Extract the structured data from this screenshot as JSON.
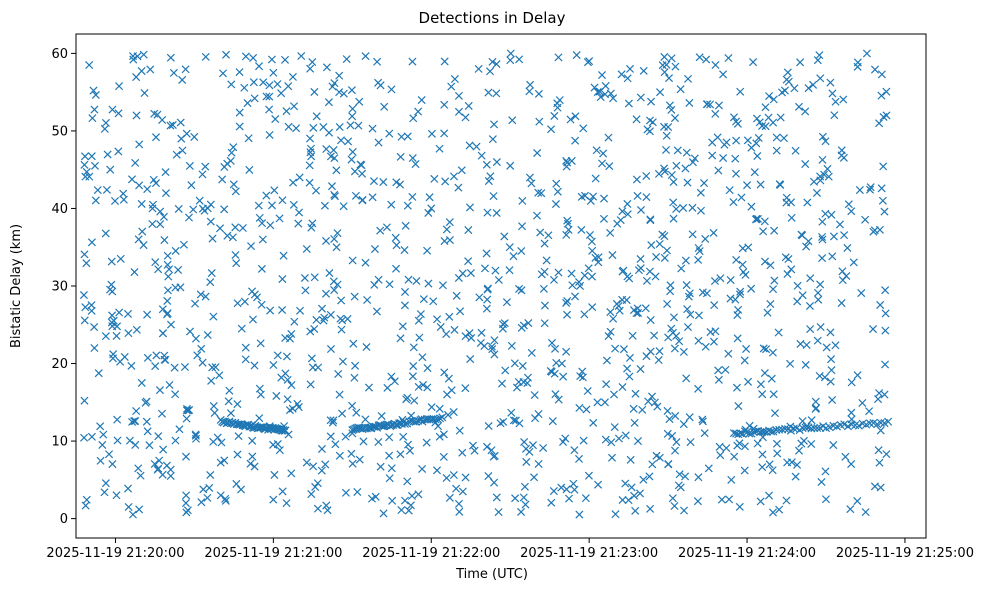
{
  "chart_data": {
    "type": "scatter",
    "title": "Detections in Delay",
    "xlabel": "Time (UTC)",
    "ylabel": "Bistatic Delay (km)",
    "x_ticks": [
      "2025-11-19 21:20:00",
      "2025-11-19 21:21:00",
      "2025-11-19 21:22:00",
      "2025-11-19 21:23:00",
      "2025-11-19 21:24:00",
      "2025-11-19 21:25:00"
    ],
    "y_ticks": [
      "0",
      "10",
      "20",
      "30",
      "40",
      "50",
      "60"
    ],
    "xlim": [
      "2025-11-19 21:19:45",
      "2025-11-19 21:25:08"
    ],
    "ylim": [
      -2.5,
      62.5
    ],
    "marker": "x",
    "grid": false,
    "colors": {
      "series": "#1f77b4",
      "axis": "#000000"
    },
    "series": [
      {
        "trend_tracks": [
          {
            "x": [
              "2025-11-19 21:20:40",
              "2025-11-19 21:20:50",
              "2025-11-19 21:20:58",
              "2025-11-19 21:21:05"
            ],
            "y": [
              12.6,
              12.0,
              11.6,
              11.4
            ]
          },
          {
            "x": [
              "2025-11-19 21:21:30",
              "2025-11-19 21:21:40",
              "2025-11-19 21:21:50",
              "2025-11-19 21:22:05"
            ],
            "y": [
              11.5,
              11.9,
              12.3,
              13.0
            ]
          },
          {
            "x": [
              "2025-11-19 21:23:55",
              "2025-11-19 21:24:10",
              "2025-11-19 21:24:30",
              "2025-11-19 21:24:55"
            ],
            "y": [
              11.0,
              11.3,
              11.8,
              12.5
            ]
          }
        ],
        "x": [
          "2025-11-19 21:19:50",
          "2025-11-19 21:19:52",
          "2025-11-19 21:19:55",
          "2025-11-19 21:19:58",
          "2025-11-19 21:20:02",
          "2025-11-19 21:20:05",
          "2025-11-19 21:20:08",
          "2025-11-19 21:20:10",
          "2025-11-19 21:20:14",
          "2025-11-19 21:20:18",
          "2025-11-19 21:20:21",
          "2025-11-19 21:20:25",
          "2025-11-19 21:20:28",
          "2025-11-19 21:20:32",
          "2025-11-19 21:20:36",
          "2025-11-19 21:20:40",
          "2025-11-19 21:20:44",
          "2025-11-19 21:20:48",
          "2025-11-19 21:20:52",
          "2025-11-19 21:20:56",
          "2025-11-19 21:21:00",
          "2025-11-19 21:21:05",
          "2025-11-19 21:21:10",
          "2025-11-19 21:21:15",
          "2025-11-19 21:21:20",
          "2025-11-19 21:21:25",
          "2025-11-19 21:21:30",
          "2025-11-19 21:21:35",
          "2025-11-19 21:21:40",
          "2025-11-19 21:21:45",
          "2025-11-19 21:21:50",
          "2025-11-19 21:21:55",
          "2025-11-19 21:22:00",
          "2025-11-19 21:22:06",
          "2025-11-19 21:22:12",
          "2025-11-19 21:22:18",
          "2025-11-19 21:22:24",
          "2025-11-19 21:22:30",
          "2025-11-19 21:22:36",
          "2025-11-19 21:22:42",
          "2025-11-19 21:22:48",
          "2025-11-19 21:22:54",
          "2025-11-19 21:23:00",
          "2025-11-19 21:23:06",
          "2025-11-19 21:23:12",
          "2025-11-19 21:23:18",
          "2025-11-19 21:23:24",
          "2025-11-19 21:23:30",
          "2025-11-19 21:23:36",
          "2025-11-19 21:23:42",
          "2025-11-19 21:23:48",
          "2025-11-19 21:23:54",
          "2025-11-19 21:24:00",
          "2025-11-19 21:24:06",
          "2025-11-19 21:24:12",
          "2025-11-19 21:24:18",
          "2025-11-19 21:24:24",
          "2025-11-19 21:24:30",
          "2025-11-19 21:24:36",
          "2025-11-19 21:24:42",
          "2025-11-19 21:24:48",
          "2025-11-19 21:24:53"
        ],
        "y": [
          58.5,
          22.0,
          9.5,
          45.0,
          33.5,
          1.5,
          52.0,
          17.5,
          38.0,
          27.0,
          5.5,
          49.0,
          14.0,
          41.0,
          30.5,
          3.0,
          56.0,
          24.5,
          8.0,
          36.0,
          57.5,
          2.0,
          44.0,
          19.5,
          29.0,
          55.0,
          11.0,
          33.0,
          48.5,
          6.5,
          27.5,
          52.5,
          40.0,
          16.0,
          3.5,
          58.0,
          23.0,
          45.5,
          9.0,
          31.5,
          53.0,
          4.5,
          59.0,
          15.0,
          38.5,
          26.5,
          7.0,
          50.5,
          21.5,
          34.5,
          58.5,
          5.0,
          43.0,
          10.5,
          24.0,
          55.5,
          31.0,
          2.5,
          47.5,
          18.5,
          37.0,
          52.0
        ]
      }
    ]
  }
}
